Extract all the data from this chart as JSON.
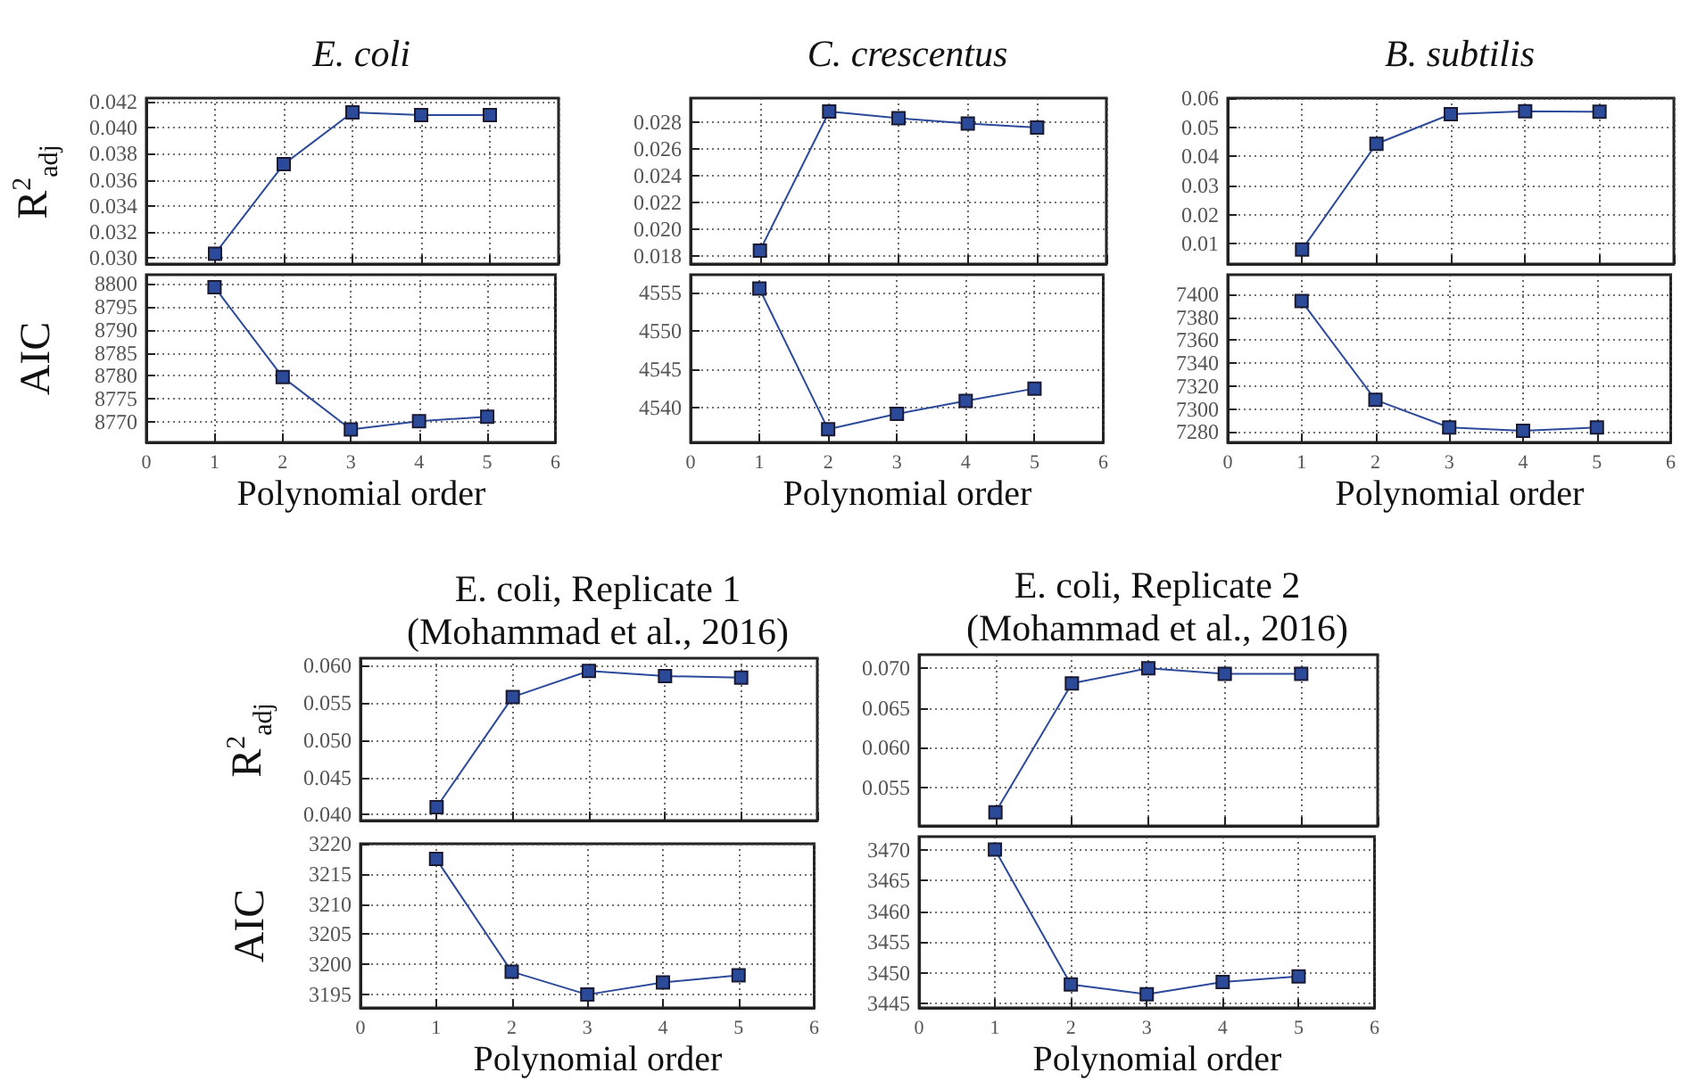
{
  "chart_data": [
    {
      "type": "line",
      "title": "E. coli",
      "ylabel": "R$^{2}$$_{adj}$",
      "x": [
        1,
        2,
        3,
        4,
        5
      ],
      "values": [
        0.0303,
        0.0372,
        0.0412,
        0.041,
        0.041
      ],
      "color": "#2c4a9a",
      "xlim": [
        0,
        6
      ],
      "xticks": [
        0,
        1,
        2,
        3,
        4,
        5,
        6
      ],
      "ylim": [
        0.0295,
        0.0423
      ],
      "yticks": [
        {
          "value": 0.03,
          "label": "0.030"
        },
        0.032,
        0.034,
        0.036,
        0.038,
        {
          "value": 0.04,
          "label": "0.040"
        },
        0.042
      ],
      "tick_labels": "y",
      "grid": true,
      "marker": "square",
      "line_style": "solid"
    },
    {
      "type": "line",
      "title": "C. crescentus",
      "x": [
        1,
        2,
        3,
        4,
        5
      ],
      "values": [
        0.0184,
        0.0288,
        0.0283,
        0.0279,
        0.0276
      ],
      "color": "#2c4a9a",
      "xlim": [
        0,
        6
      ],
      "xticks": [
        0,
        1,
        2,
        3,
        4,
        5,
        6
      ],
      "ylim": [
        0.0174,
        0.0298
      ],
      "yticks": [
        0.018,
        {
          "value": 0.02,
          "label": "0.020"
        },
        0.022,
        0.024,
        0.026,
        0.028
      ],
      "tick_labels": "y",
      "grid": true,
      "marker": "square",
      "line_style": "solid"
    },
    {
      "type": "line",
      "title": "B. subtilis",
      "x": [
        1,
        2,
        3,
        4,
        5
      ],
      "values": [
        0.008,
        0.0443,
        0.0545,
        0.0555,
        0.0553
      ],
      "color": "#2c4a9a",
      "xlim": [
        0,
        6
      ],
      "xticks": [
        0,
        1,
        2,
        3,
        4,
        5,
        6
      ],
      "ylim": [
        0.003,
        0.06
      ],
      "yticks": [
        0.01,
        0.02,
        0.03,
        0.04,
        0.05,
        0.06
      ],
      "tick_labels": "y",
      "grid": true,
      "marker": "square",
      "line_style": "solid"
    },
    {
      "type": "line",
      "ylabel": "AIC",
      "xlabel": "Polynomial order",
      "x": [
        1,
        2,
        3,
        4,
        5
      ],
      "values": [
        8799.3,
        8779.7,
        8768.3,
        8770.1,
        8771.1
      ],
      "color": "#2c4a9a",
      "xlim": [
        0,
        6
      ],
      "xticks": [
        0,
        1,
        2,
        3,
        4,
        5,
        6
      ],
      "ylim": [
        8765.5,
        8802
      ],
      "yticks": [
        8770,
        8775,
        8780,
        8785,
        8790,
        8795,
        8800
      ],
      "grid": true,
      "marker": "square",
      "line_style": "solid"
    },
    {
      "type": "line",
      "xlabel": "Polynomial order",
      "x": [
        1,
        2,
        3,
        4,
        5
      ],
      "values": [
        4555.5,
        4537.2,
        4539.2,
        4540.9,
        4542.5
      ],
      "color": "#2c4a9a",
      "xlim": [
        0,
        6
      ],
      "xticks": [
        0,
        1,
        2,
        3,
        4,
        5,
        6
      ],
      "ylim": [
        4535.5,
        4557.3
      ],
      "yticks": [
        4540,
        4545,
        4550,
        4555
      ],
      "grid": true,
      "marker": "square",
      "line_style": "solid"
    },
    {
      "type": "line",
      "xlabel": "Polynomial order",
      "x": [
        1,
        2,
        3,
        4,
        5
      ],
      "values": [
        7394,
        7308,
        7284,
        7281,
        7284
      ],
      "color": "#2c4a9a",
      "xlim": [
        0,
        6
      ],
      "xticks": [
        0,
        1,
        2,
        3,
        4,
        5,
        6
      ],
      "ylim": [
        7271,
        7417
      ],
      "yticks": [
        7280,
        7300,
        7320,
        7340,
        7360,
        7380,
        7400
      ],
      "grid": true,
      "marker": "square",
      "line_style": "solid"
    },
    {
      "type": "line",
      "title": "E. coli, Replicate 1\n(Mohammad et al., 2016)",
      "ylabel": "R$^{2}$$_{adj}$",
      "x": [
        1,
        2,
        3,
        4,
        5
      ],
      "values": [
        0.041,
        0.0558,
        0.0593,
        0.0586,
        0.0584
      ],
      "color": "#2c4a9a",
      "xlim": [
        0,
        6
      ],
      "xticks": [
        0,
        1,
        2,
        3,
        4,
        5,
        6
      ],
      "ylim": [
        0.0392,
        0.061
      ],
      "yticks": [
        {
          "value": 0.04,
          "label": "0.040"
        },
        0.045,
        {
          "value": 0.05,
          "label": "0.050"
        },
        0.055,
        {
          "value": 0.06,
          "label": "0.060"
        }
      ],
      "tick_labels": "y",
      "grid": true,
      "marker": "square",
      "line_style": "solid"
    },
    {
      "type": "line",
      "title": "E. coli, Replicate 2\n(Mohammad et al., 2016)",
      "x": [
        1,
        2,
        3,
        4,
        5
      ],
      "values": [
        0.0519,
        0.0681,
        0.07,
        0.0693,
        0.0693
      ],
      "color": "#2c4a9a",
      "xlim": [
        0,
        6
      ],
      "xticks": [
        0,
        1,
        2,
        3,
        4,
        5,
        6
      ],
      "ylim": [
        0.0502,
        0.0717
      ],
      "yticks": [
        0.055,
        {
          "value": 0.06,
          "label": "0.060"
        },
        0.065,
        {
          "value": 0.07,
          "label": "0.070"
        }
      ],
      "tick_labels": "y",
      "grid": true,
      "marker": "square",
      "line_style": "solid"
    },
    {
      "type": "line",
      "ylabel": "AIC",
      "xlabel": "Polynomial order",
      "x": [
        1,
        2,
        3,
        4,
        5
      ],
      "values": [
        3217.5,
        3198.8,
        3195,
        3197,
        3198.2
      ],
      "color": "#2c4a9a",
      "xlim": [
        0,
        6
      ],
      "xticks": [
        0,
        1,
        2,
        3,
        4,
        5,
        6
      ],
      "ylim": [
        3192.8,
        3220
      ],
      "yticks": [
        3195,
        3200,
        3205,
        3210,
        3215,
        3220
      ],
      "grid": true,
      "marker": "square",
      "line_style": "solid"
    },
    {
      "type": "line",
      "xlabel": "Polynomial order",
      "x": [
        1,
        2,
        3,
        4,
        5
      ],
      "values": [
        3470,
        3448.1,
        3446.5,
        3448.5,
        3449.4
      ],
      "color": "#2c4a9a",
      "xlim": [
        0,
        6
      ],
      "xticks": [
        0,
        1,
        2,
        3,
        4,
        5,
        6
      ],
      "ylim": [
        3444.3,
        3472.1
      ],
      "yticks": [
        3445,
        3450,
        3455,
        3460,
        3465,
        3470
      ],
      "grid": true,
      "marker": "square",
      "line_style": "solid"
    }
  ]
}
